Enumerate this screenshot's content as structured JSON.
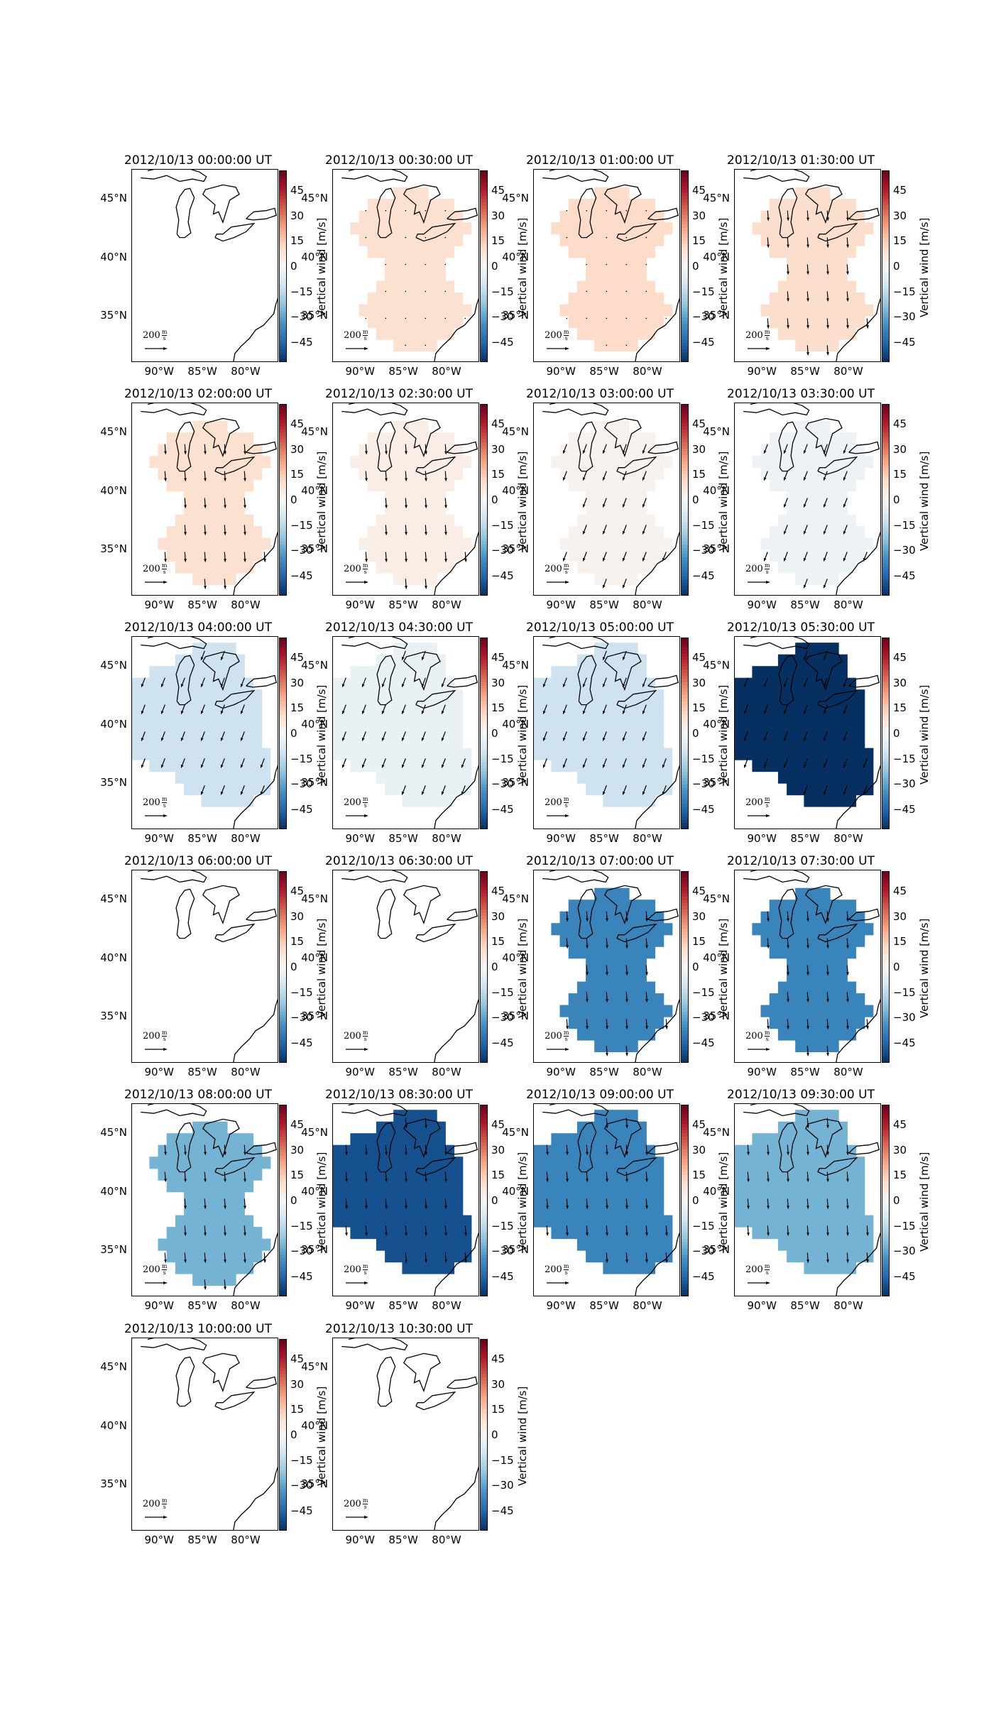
{
  "figure": {
    "colorbar_label": "Vertical wind [m/s]",
    "colorbar_ticks": [
      "45",
      "30",
      "15",
      "0",
      "−15",
      "−30",
      "−45"
    ],
    "colorbar_tick_values": [
      45,
      30,
      15,
      0,
      -15,
      -30,
      -45
    ],
    "colorbar_range": [
      -57,
      57
    ],
    "colormap": "RdBu_r",
    "lat_ticks": [
      "45°N",
      "40°N",
      "35°N"
    ],
    "lon_ticks": [
      "90°W",
      "85°W",
      "80°W"
    ],
    "vector_key": {
      "value": "200",
      "unit_num": "m",
      "unit_den": "s"
    },
    "map_extent": {
      "lon": [
        -93,
        -76
      ],
      "lat": [
        31,
        47.5
      ]
    }
  },
  "panels": [
    {
      "title": "2012/10/13 00:00:00 UT",
      "shape": "none",
      "value": null,
      "arrows": "none"
    },
    {
      "title": "2012/10/13 00:30:00 UT",
      "shape": "dumbbell",
      "value": 9,
      "arrows": "dots"
    },
    {
      "title": "2012/10/13 01:00:00 UT",
      "shape": "dumbbell",
      "value": 11,
      "arrows": "dots"
    },
    {
      "title": "2012/10/13 01:30:00 UT",
      "shape": "dumbbell",
      "value": 10,
      "arrows": "south"
    },
    {
      "title": "2012/10/13 02:00:00 UT",
      "shape": "dumbbell",
      "value": 9,
      "arrows": "south"
    },
    {
      "title": "2012/10/13 02:30:00 UT",
      "shape": "dumbbell",
      "value": 4,
      "arrows": "south"
    },
    {
      "title": "2012/10/13 03:00:00 UT",
      "shape": "dumbbell",
      "value": 2,
      "arrows": "southwest"
    },
    {
      "title": "2012/10/13 03:30:00 UT",
      "shape": "dumbbell",
      "value": -3,
      "arrows": "southwest"
    },
    {
      "title": "2012/10/13 04:00:00 UT",
      "shape": "blob",
      "value": -12,
      "arrows": "southwest"
    },
    {
      "title": "2012/10/13 04:30:00 UT",
      "shape": "blob",
      "value": -4,
      "arrows": "southwest"
    },
    {
      "title": "2012/10/13 05:00:00 UT",
      "shape": "blob",
      "value": -12,
      "arrows": "southwest"
    },
    {
      "title": "2012/10/13 05:30:00 UT",
      "shape": "blob",
      "value": -57,
      "arrows": "southwest"
    },
    {
      "title": "2012/10/13 06:00:00 UT",
      "shape": "none",
      "value": null,
      "arrows": "none"
    },
    {
      "title": "2012/10/13 06:30:00 UT",
      "shape": "none",
      "value": null,
      "arrows": "none"
    },
    {
      "title": "2012/10/13 07:00:00 UT",
      "shape": "dumbbell",
      "value": -38,
      "arrows": "south"
    },
    {
      "title": "2012/10/13 07:30:00 UT",
      "shape": "dumbbell",
      "value": -38,
      "arrows": "south"
    },
    {
      "title": "2012/10/13 08:00:00 UT",
      "shape": "dumbbell",
      "value": -27,
      "arrows": "south"
    },
    {
      "title": "2012/10/13 08:30:00 UT",
      "shape": "blob",
      "value": -50,
      "arrows": "south"
    },
    {
      "title": "2012/10/13 09:00:00 UT",
      "shape": "blob",
      "value": -38,
      "arrows": "south"
    },
    {
      "title": "2012/10/13 09:30:00 UT",
      "shape": "blob",
      "value": -27,
      "arrows": "south"
    },
    {
      "title": "2012/10/13 10:00:00 UT",
      "shape": "none",
      "value": null,
      "arrows": "none"
    },
    {
      "title": "2012/10/13 10:30:00 UT",
      "shape": "none",
      "value": null,
      "arrows": "none"
    }
  ]
}
